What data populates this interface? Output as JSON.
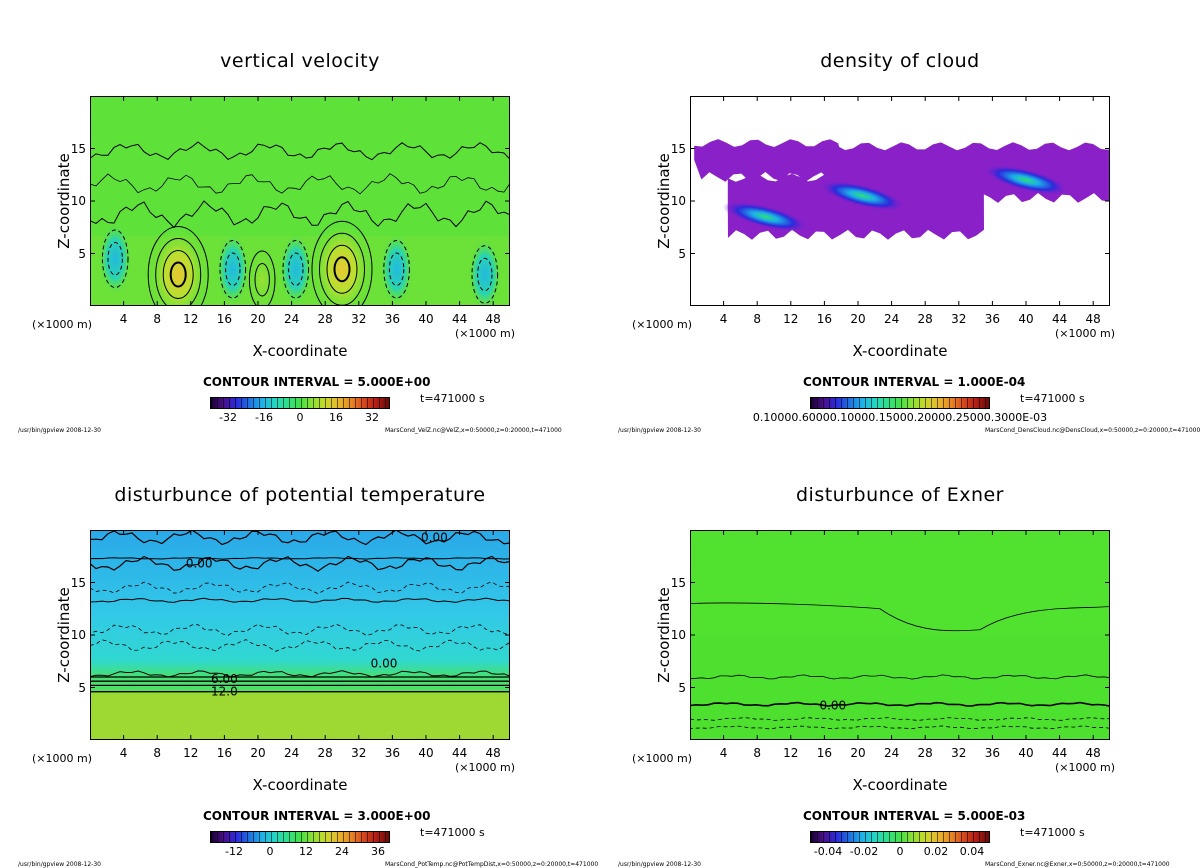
{
  "chart_data": [
    {
      "type": "heatmap",
      "title": "vertical velocity",
      "xlabel": "X-coordinate",
      "ylabel": "Z-coordinate",
      "xunit": "(×1000 m)",
      "xunit2": "(×1000 m)",
      "xlim": [
        0,
        50
      ],
      "ylim": [
        0,
        20
      ],
      "xticks": [
        "4",
        "8",
        "12",
        "16",
        "20",
        "24",
        "28",
        "32",
        "36",
        "40",
        "44",
        "48"
      ],
      "yticks": [
        "5",
        "10",
        "15"
      ],
      "contour_interval": "CONTOUR INTERVAL = 5.000E+00",
      "colorbar_labels": [
        "-32",
        "-16",
        "0",
        "16",
        "32"
      ],
      "colorbar_range": [
        -40,
        40
      ],
      "time": "t=471000 s",
      "footer_left": "/usr/bin/gpview  2008-12-30",
      "footer_right": "MarsCond_VelZ.nc@VelZ,x=0:50000,z=0:20000,t=471000",
      "contour_labels": [],
      "features": [
        {
          "kind": "updraft",
          "x": 10.5,
          "z": 3.0,
          "value": 35
        },
        {
          "kind": "updraft",
          "x": 30.0,
          "z": 3.5,
          "value": 35
        },
        {
          "kind": "updraft",
          "x": 20.5,
          "z": 2.5,
          "value": 10
        },
        {
          "kind": "downdraft",
          "x": 3.0,
          "z": 4.5,
          "value": -15
        },
        {
          "kind": "downdraft",
          "x": 17.0,
          "z": 3.5,
          "value": -15
        },
        {
          "kind": "downdraft",
          "x": 24.5,
          "z": 3.5,
          "value": -15
        },
        {
          "kind": "downdraft",
          "x": 36.5,
          "z": 3.5,
          "value": -15
        },
        {
          "kind": "downdraft",
          "x": 47.0,
          "z": 3.0,
          "value": -12
        }
      ]
    },
    {
      "type": "heatmap",
      "title": "density of cloud",
      "xlabel": "X-coordinate",
      "ylabel": "Z-coordinate",
      "xunit": "(×1000 m)",
      "xunit2": "(×1000 m)",
      "xlim": [
        0,
        50
      ],
      "ylim": [
        0,
        20
      ],
      "xticks": [
        "4",
        "8",
        "12",
        "16",
        "20",
        "24",
        "28",
        "32",
        "36",
        "40",
        "44",
        "48"
      ],
      "yticks": [
        "5",
        "10",
        "15"
      ],
      "contour_interval": "CONTOUR INTERVAL = 1.000E-04",
      "colorbar_labels": [
        "0.10000.60000.10000.15000.20000.25000.3000E-03"
      ],
      "colorbar_range": [
        0,
        0.0008
      ],
      "time": "t=471000 s",
      "footer_left": "/usr/bin/gpview  2008-12-30",
      "footer_right": "MarsCond_DensCloud.nc@DensCloud,x=0:50000,z=0:20000,t=471000",
      "contour_labels": [],
      "features": [
        {
          "kind": "cloud-band",
          "x0": 0.5,
          "x1": 18.5,
          "z0": 12.0,
          "z1": 15.8
        },
        {
          "kind": "cloud-band",
          "x0": 17.5,
          "x1": 50.0,
          "z0": 10.0,
          "z1": 15.5
        },
        {
          "kind": "cloud-band",
          "x0": 4.5,
          "x1": 35.0,
          "z0": 6.5,
          "z1": 12.5
        },
        {
          "kind": "cloud-core",
          "x": 20.5,
          "z": 10.5,
          "value": 0.0006
        },
        {
          "kind": "cloud-core",
          "x": 9.0,
          "z": 8.5,
          "value": 0.0005
        },
        {
          "kind": "cloud-core",
          "x": 40.0,
          "z": 12.0,
          "value": 0.0004
        }
      ]
    },
    {
      "type": "heatmap",
      "title": "disturbunce of potential temperature",
      "xlabel": "X-coordinate",
      "ylabel": "Z-coordinate",
      "xunit": "(×1000 m)",
      "xunit2": "(×1000 m)",
      "xlim": [
        0,
        50
      ],
      "ylim": [
        0,
        20
      ],
      "xticks": [
        "4",
        "8",
        "12",
        "16",
        "20",
        "24",
        "28",
        "32",
        "36",
        "40",
        "44",
        "48"
      ],
      "yticks": [
        "5",
        "10",
        "15"
      ],
      "contour_interval": "CONTOUR INTERVAL = 3.000E+00",
      "colorbar_labels": [
        "-12",
        "0",
        "12",
        "24",
        "36"
      ],
      "colorbar_range": [
        -20,
        40
      ],
      "time": "t=471000 s",
      "footer_left": "/usr/bin/gpview  2008-12-30",
      "footer_right": "MarsCond_PotTemp.nc@PotTempDist,x=0:50000,z=0:20000,t=471000",
      "contour_labels": [
        {
          "text": "0.00",
          "x": 41,
          "z": 19.3
        },
        {
          "text": "0.00",
          "x": 13,
          "z": 16.8
        },
        {
          "text": "0.00",
          "x": 35,
          "z": 7.3
        },
        {
          "text": "6.00",
          "x": 16,
          "z": 5.8
        },
        {
          "text": "12.0",
          "x": 16,
          "z": 4.6
        }
      ],
      "features": []
    },
    {
      "type": "heatmap",
      "title": "disturbunce of Exner",
      "xlabel": "X-coordinate",
      "ylabel": "Z-coordinate",
      "xunit": "(×1000 m)",
      "xunit2": "(×1000 m)",
      "xlim": [
        0,
        50
      ],
      "ylim": [
        0,
        20
      ],
      "xticks": [
        "4",
        "8",
        "12",
        "16",
        "20",
        "24",
        "28",
        "32",
        "36",
        "40",
        "44",
        "48"
      ],
      "yticks": [
        "5",
        "10",
        "15"
      ],
      "contour_interval": "CONTOUR INTERVAL = 5.000E-03",
      "colorbar_labels": [
        "-0.04",
        "-0.02",
        "0",
        "0.02",
        "0.04"
      ],
      "colorbar_range": [
        -0.05,
        0.05
      ],
      "time": "t=471000 s",
      "footer_left": "/usr/bin/gpview  2008-12-30",
      "footer_right": "MarsCond_Exner.nc@Exner,x=0:50000,z=0:20000,t=471000",
      "contour_labels": [
        {
          "text": "0.00",
          "x": 17,
          "z": 3.3
        }
      ],
      "features": []
    }
  ]
}
